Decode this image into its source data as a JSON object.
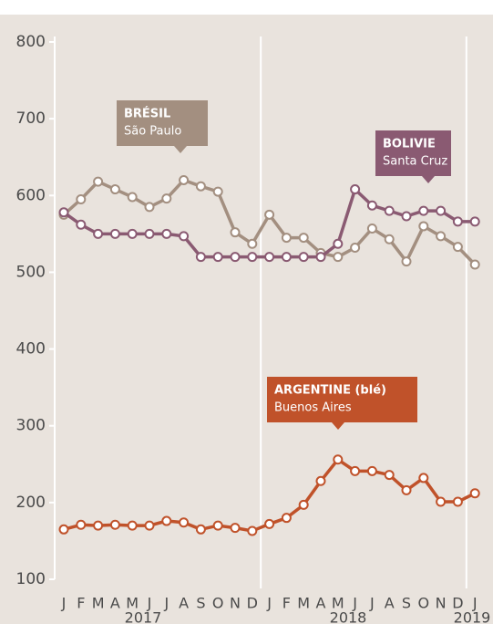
{
  "chart_data": {
    "type": "line",
    "categories": [
      "J",
      "F",
      "M",
      "A",
      "M",
      "J",
      "J",
      "A",
      "S",
      "O",
      "N",
      "D",
      "J",
      "F",
      "M",
      "A",
      "M",
      "J",
      "J",
      "A",
      "S",
      "O",
      "N",
      "D",
      "J"
    ],
    "year_labels": [
      "2017",
      "2018",
      "2019"
    ],
    "ylim": [
      100,
      800
    ],
    "yticks": [
      100,
      200,
      300,
      400,
      500,
      600,
      700,
      800
    ],
    "series": [
      {
        "name": "Brésil",
        "color": "#a38f80",
        "values": [
          575,
          595,
          618,
          608,
          598,
          585,
          596,
          620,
          612,
          605,
          552,
          537,
          575,
          545,
          545,
          525,
          520,
          532,
          557,
          543,
          514,
          560,
          547,
          533,
          510
        ]
      },
      {
        "name": "Bolivie",
        "color": "#8a5a72",
        "values": [
          578,
          562,
          550,
          550,
          550,
          550,
          550,
          547,
          520,
          520,
          520,
          520,
          520,
          520,
          520,
          520,
          537,
          608,
          587,
          580,
          573,
          580,
          580,
          566,
          566
        ]
      },
      {
        "name": "Argentine",
        "color": "#c0522a",
        "values": [
          165,
          171,
          170,
          171,
          170,
          170,
          176,
          174,
          165,
          170,
          167,
          163,
          172,
          180,
          197,
          228,
          256,
          241,
          241,
          236,
          216,
          232,
          201,
          201,
          212
        ]
      }
    ],
    "annotations": [
      {
        "title": "BRÉSIL",
        "subtitle": "São Paulo",
        "series": 0
      },
      {
        "title": "BOLIVIE",
        "subtitle": "Santa Cruz",
        "series": 1
      },
      {
        "title": "ARGENTINE (blé)",
        "subtitle": "Buenos Aires",
        "series": 2
      }
    ]
  }
}
